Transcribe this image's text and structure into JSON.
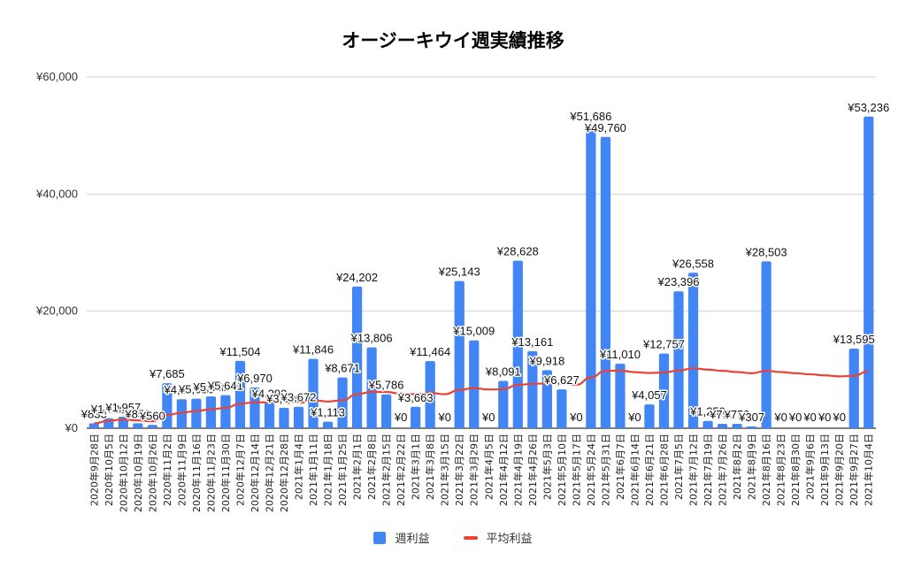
{
  "chart_data": {
    "type": "bar",
    "title": "オージーキウイ週実績推移",
    "xlabel": "",
    "ylabel": "",
    "ylim": [
      0,
      60000
    ],
    "yticks": [
      0,
      20000,
      40000,
      60000
    ],
    "ytick_labels": [
      "¥0",
      "¥20,000",
      "¥40,000",
      "¥60,000"
    ],
    "grid": true,
    "legend_position": "bottom",
    "categories": [
      "2020年9月28日",
      "2020年10月5日",
      "2020年10月12日",
      "2020年10月19日",
      "2020年10月26日",
      "2020年11月2日",
      "2020年11月9日",
      "2020年11月16日",
      "2020年11月23日",
      "2020年11月30日",
      "2020年12月7日",
      "2020年12月14日",
      "2020年12月21日",
      "2020年12月28日",
      "2021年1月4日",
      "2021年1月11日",
      "2021年1月18日",
      "2021年1月25日",
      "2021年2月1日",
      "2021年2月8日",
      "2021年2月15日",
      "2021年2月22日",
      "2021年3月1日",
      "2021年3月8日",
      "2021年3月15日",
      "2021年3月22日",
      "2021年3月29日",
      "2021年4月5日",
      "2021年4月12日",
      "2021年4月19日",
      "2021年4月26日",
      "2021年5月3日",
      "2021年5月10日",
      "2021年5月17日",
      "2021年5月24日",
      "2021年5月31日",
      "2021年6月7日",
      "2021年6月14日",
      "2021年6月21日",
      "2021年6月28日",
      "2021年7月5日",
      "2021年7月12日",
      "2021年7月19日",
      "2021年7月26日",
      "2021年8月2日",
      "2021年8月9日",
      "2021年8月16日",
      "2021年8月23日",
      "2021年8月30日",
      "2021年9月6日",
      "2021年9月13日",
      "2021年9月20日",
      "2021年9月27日",
      "2021年10月4日"
    ],
    "series": [
      {
        "name": "週利益",
        "type": "bar",
        "color": "#4285f4",
        "values": [
          833,
          1700,
          1957,
          850,
          560,
          7685,
          4950,
          5050,
          5450,
          5641,
          11504,
          6970,
          4290,
          3500,
          3672,
          11846,
          1113,
          8671,
          24202,
          13806,
          5786,
          0,
          3663,
          11464,
          0,
          25143,
          15009,
          0,
          8091,
          28628,
          13161,
          9918,
          6627,
          0,
          51686,
          49760,
          11010,
          0,
          4057,
          12757,
          23396,
          26558,
          1250,
          750,
          750,
          307,
          28503,
          0,
          0,
          0,
          0,
          0,
          13595,
          53236
        ],
        "data_labels": [
          "¥833",
          "¥1,700",
          "¥1,957",
          "¥850",
          "¥560",
          "¥7,685",
          "¥4,950",
          "¥5,050",
          "¥5,450",
          "¥5,641",
          "¥11,504",
          "¥6,970",
          "¥4,290",
          "¥3,500",
          "¥3,672",
          "¥11,846",
          "¥1,113",
          "¥8,671",
          "¥24,202",
          "¥13,806",
          "¥5,786",
          "¥0",
          "¥3,663",
          "¥11,464",
          "¥0",
          "¥25,143",
          "¥15,009",
          "¥0",
          "¥8,091",
          "¥28,628",
          "¥13,161",
          "¥9,918",
          "¥6,627",
          "¥0",
          "¥51,686",
          "¥49,760",
          "¥11,010",
          "¥0",
          "¥4,057",
          "¥12,757",
          "¥23,396",
          "¥26,558",
          "¥1,250",
          "¥750",
          "¥750",
          "¥307",
          "¥28,503",
          "¥0",
          "¥0",
          "¥0",
          "¥0",
          "¥0",
          "¥13,595",
          "¥53,236"
        ]
      },
      {
        "name": "平均利益",
        "type": "line",
        "color": "#ea4335",
        "values": [
          833,
          1267,
          1497,
          1335,
          1180,
          2264,
          2648,
          2948,
          3226,
          3467,
          4198,
          4429,
          4418,
          4352,
          4307,
          4778,
          4562,
          4790,
          5812,
          6212,
          6192,
          5911,
          5813,
          6048,
          5806,
          6550,
          6863,
          6618,
          6668,
          7400,
          7586,
          7658,
          7627,
          7403,
          8669,
          9809,
          9841,
          9582,
          9441,
          9521,
          9859,
          10231,
          10015,
          9804,
          9595,
          9393,
          9801,
          9597,
          9401,
          9213,
          9032,
          8858,
          8951,
          9773
        ]
      }
    ]
  },
  "legend": {
    "items": [
      {
        "label": "週利益",
        "color": "#4285f4"
      },
      {
        "label": "平均利益",
        "color": "#ea4335"
      }
    ]
  }
}
